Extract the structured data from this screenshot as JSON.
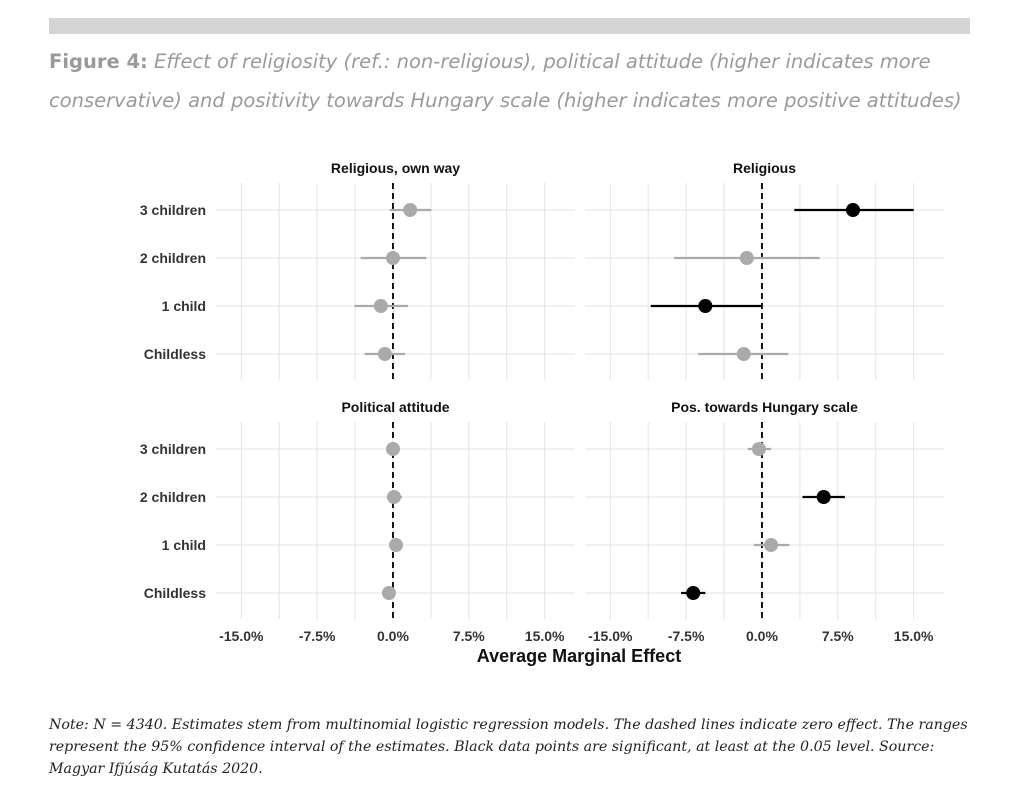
{
  "figure": {
    "label": "Figure 4:",
    "caption": "Effect of religiosity (ref.: non-religious), political attitude (higher indicates more conservative) and positivity towards Hungary scale (higher indicates more positive attitudes)"
  },
  "note": "Note: N = 4340. Estimates stem from multinomial logistic regression models. The dashed lines indicate zero effect. The ranges represent the 95% confidence interval of the estimates. Black data points are significant, at least at the 0.05 level. Source: Magyar Ifjúság Kutatás 2020.",
  "colors": {
    "significant": "#000000",
    "non_significant": "#aaaaaa",
    "grid": "#e3e3e3"
  },
  "chart_data": {
    "type": "scatter",
    "xlabel": "Average Marginal Effect",
    "x_ticks": [
      -15,
      -7.5,
      0,
      7.5,
      15
    ],
    "x_tick_labels": [
      "-15.0%",
      "-7.5%",
      "0.0%",
      "7.5%",
      "15.0%"
    ],
    "xlim": [
      -17.5,
      18
    ],
    "categories": [
      "3 children",
      "2 children",
      "1 child",
      "Childless"
    ],
    "reference_line": 0,
    "panels": [
      {
        "title": "Religious, own way",
        "points": [
          {
            "category": "3 children",
            "estimate": 1.7,
            "low": -0.3,
            "high": 3.8,
            "significant": false
          },
          {
            "category": "2 children",
            "estimate": 0.0,
            "low": -3.2,
            "high": 3.3,
            "significant": false
          },
          {
            "category": "1 child",
            "estimate": -1.2,
            "low": -3.8,
            "high": 1.5,
            "significant": false
          },
          {
            "category": "Childless",
            "estimate": -0.8,
            "low": -2.8,
            "high": 1.2,
            "significant": false
          }
        ]
      },
      {
        "title": "Religious",
        "points": [
          {
            "category": "3 children",
            "estimate": 9.0,
            "low": 3.2,
            "high": 15.0,
            "significant": true
          },
          {
            "category": "2 children",
            "estimate": -1.5,
            "low": -8.7,
            "high": 5.7,
            "significant": false
          },
          {
            "category": "1 child",
            "estimate": -5.6,
            "low": -11.0,
            "high": 0.0,
            "significant": true
          },
          {
            "category": "Childless",
            "estimate": -1.8,
            "low": -6.3,
            "high": 2.6,
            "significant": false
          }
        ]
      },
      {
        "title": "Political attitude",
        "points": [
          {
            "category": "3 children",
            "estimate": 0.0,
            "low": -0.3,
            "high": 0.3,
            "significant": false
          },
          {
            "category": "2 children",
            "estimate": 0.1,
            "low": -0.6,
            "high": 0.9,
            "significant": false
          },
          {
            "category": "1 child",
            "estimate": 0.3,
            "low": -0.2,
            "high": 0.9,
            "significant": false
          },
          {
            "category": "Childless",
            "estimate": -0.4,
            "low": -0.8,
            "high": 0.1,
            "significant": false
          }
        ]
      },
      {
        "title": "Pos. towards Hungary scale",
        "points": [
          {
            "category": "3 children",
            "estimate": -0.3,
            "low": -1.4,
            "high": 0.9,
            "significant": false
          },
          {
            "category": "2 children",
            "estimate": 6.1,
            "low": 4.0,
            "high": 8.2,
            "significant": true
          },
          {
            "category": "1 child",
            "estimate": 0.9,
            "low": -0.8,
            "high": 2.7,
            "significant": false
          },
          {
            "category": "Childless",
            "estimate": -6.8,
            "low": -8.0,
            "high": -5.6,
            "significant": true
          }
        ]
      }
    ]
  }
}
